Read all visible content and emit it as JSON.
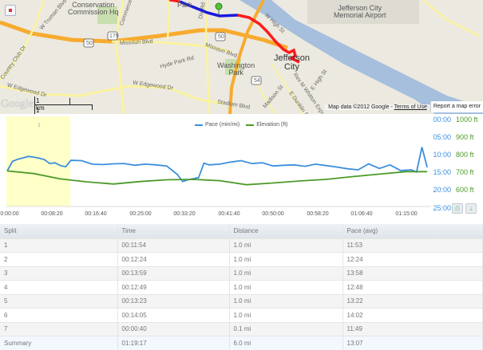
{
  "map": {
    "labels": {
      "conservation": "Conservation\nCommission Hq",
      "truman": "W Truman Blvd",
      "commerce": "Commerce Dr",
      "country_club": "Country Club Dr",
      "missouri1": "Missouri Blvd",
      "missouri2": "Missouri Blvd",
      "hyde_park": "Hyde Park Rd",
      "edgewood1": "W Edgewood Dr",
      "edgewood2": "W Edgewood Dr",
      "dix": "Dix Rd",
      "park": "Park",
      "washington_park": "Washington\nPark",
      "stadium": "Stadium Blvd",
      "jefferson_city": "Jefferson\nCity",
      "airport": "Jefferson City\nMemorial Airport",
      "high_st": "W High St",
      "e_high_st": "E High St",
      "madison": "Madison St",
      "whitton": "Rex M Whitton Expy",
      "dunklin": "E Dunklin St",
      "hwy_179": "179",
      "hwy_50a": "50",
      "hwy_50b": "50",
      "hwy_54": "54"
    },
    "scale": {
      "km": "1 km",
      "mi": "1 mi"
    },
    "logo": "Google",
    "attribution": {
      "data": "Map data ©2012 Google - ",
      "terms": "Terms of Use",
      "report": "Report a map error"
    },
    "colors": {
      "route_start": "#1a1adb",
      "route_main": "#ff1a1a",
      "river": "#a5bfdd",
      "highway": "#f7ab2e",
      "road": "#faf3a0",
      "park": "#c9dfaf"
    }
  },
  "chart_data": {
    "type": "line",
    "title": "",
    "legend": [
      {
        "name": "Pace (min/mi)",
        "color": "#3b8fde"
      },
      {
        "name": "Elevation (ft)",
        "color": "#4c9a2a"
      }
    ],
    "x_ticks": [
      "0:00:00",
      "00:08:20",
      "00:16:40",
      "00:25:00",
      "00:33:20",
      "00:41:40",
      "00:50:00",
      "00:58:20",
      "01:06:40",
      "01:15:00"
    ],
    "y_left_label": "Pace (min/mi)",
    "y_left_ticks": [
      "00:00",
      "05:00",
      "10:00",
      "15:00",
      "20:00",
      "25:00"
    ],
    "y_left_range": [
      0,
      25
    ],
    "y_right_label": "Elevation (ft)",
    "y_right_ticks": [
      "1000 ft",
      "900 ft",
      "800 ft",
      "700 ft",
      "600 ft"
    ],
    "y_right_range": [
      500,
      1000
    ],
    "highlight": {
      "label": "1",
      "start": "00:00:00",
      "end": "00:11:54"
    },
    "series": [
      {
        "name": "Pace (min/mi)",
        "x_min": [
          0,
          1,
          2,
          3,
          4,
          5,
          6,
          7,
          8,
          9,
          10,
          11,
          12,
          14,
          16,
          18,
          20,
          22,
          24,
          26,
          28,
          30,
          32,
          33,
          34,
          36,
          37,
          38,
          40,
          42,
          44,
          46,
          48,
          50,
          52,
          54,
          56,
          58,
          60,
          62,
          64,
          66,
          68,
          70,
          72,
          74,
          76,
          77,
          78,
          79
        ],
        "values": [
          14.5,
          11.8,
          11.2,
          10.8,
          10.4,
          10.6,
          10.9,
          11.3,
          12.4,
          12.2,
          13.0,
          13.3,
          11.5,
          11.6,
          12.6,
          12.7,
          12.5,
          12.4,
          12.9,
          12.6,
          12.8,
          13.1,
          15.5,
          17.5,
          17.0,
          16.4,
          12.3,
          12.8,
          12.6,
          12.0,
          11.6,
          12.4,
          12.2,
          13.1,
          12.9,
          12.8,
          13.2,
          12.6,
          13.0,
          13.4,
          13.9,
          14.2,
          12.5,
          13.8,
          12.8,
          14.4,
          14.2,
          14.8,
          7.8,
          13.5
        ]
      },
      {
        "name": "Elevation (ft)",
        "x_min": [
          0,
          5,
          10,
          15,
          20,
          25,
          30,
          35,
          40,
          45,
          50,
          55,
          60,
          65,
          70,
          75,
          79
        ],
        "values": [
          710,
          695,
          665,
          648,
          636,
          650,
          660,
          662,
          655,
          632,
          642,
          653,
          662,
          678,
          692,
          706,
          706
        ]
      }
    ]
  },
  "chart_buttons": {
    "print": "print-icon",
    "download": "download-icon"
  },
  "table": {
    "headers": [
      "Split",
      "Time",
      "Distance",
      "Pace (avg)"
    ],
    "rows": [
      [
        "1",
        "00:11:54",
        "1.0 mi",
        "11:53"
      ],
      [
        "2",
        "00:12:24",
        "1.0 mi",
        "12:24"
      ],
      [
        "3",
        "00:13:59",
        "1.0 mi",
        "13:58"
      ],
      [
        "4",
        "00:12:49",
        "1.0 mi",
        "12:48"
      ],
      [
        "5",
        "00:13:23",
        "1.0 mi",
        "13:22"
      ],
      [
        "6",
        "00:14:05",
        "1.0 mi",
        "14:02"
      ],
      [
        "7",
        "00:00:40",
        "0.1 mi",
        "11:49"
      ]
    ],
    "summary": [
      "Summary",
      "01:19:17",
      "6.0 mi",
      "13:07"
    ]
  }
}
